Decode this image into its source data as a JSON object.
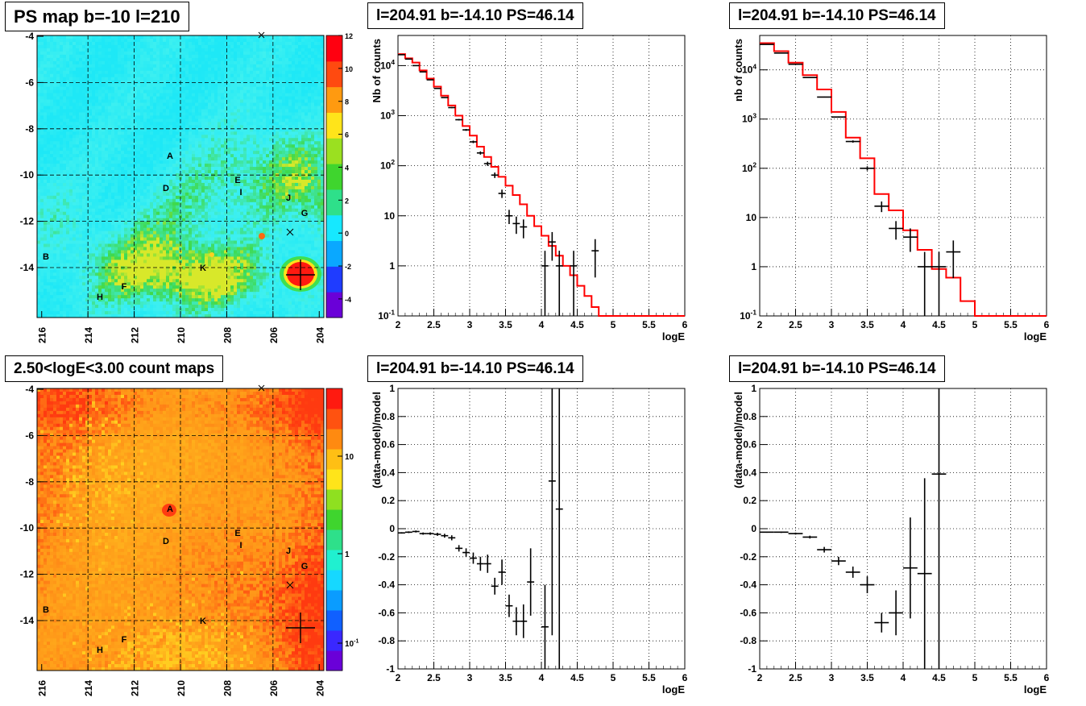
{
  "map_top": {
    "title": "PS map b=-10 l=210",
    "y_ticks": [
      "-4",
      "-6",
      "-8",
      "-10",
      "-12",
      "-14"
    ],
    "x_ticks": [
      "216",
      "214",
      "212",
      "210",
      "208",
      "206",
      "204"
    ],
    "colorbar_ticks": [
      "12",
      "10",
      "8",
      "6",
      "4",
      "2",
      "0",
      "-2",
      "-4"
    ],
    "colorbar_colors": [
      "#6a00d8",
      "#1f3cff",
      "#0aa8ff",
      "#16e8ff",
      "#2ee08a",
      "#3fd52e",
      "#9be020",
      "#ffe41a",
      "#ff9a10",
      "#ff4a10",
      "#ff0010"
    ],
    "base_color": "#22e6f5"
  },
  "map_bottom": {
    "title": "2.50<logE<3.00 count maps",
    "y_ticks": [
      "-4",
      "-6",
      "-8",
      "-10",
      "-12",
      "-14"
    ],
    "x_ticks": [
      "216",
      "214",
      "212",
      "210",
      "208",
      "206",
      "204"
    ],
    "colorbar_ticks": [
      "10",
      "1",
      "10-1"
    ],
    "base_color": "#ff8c1a"
  },
  "sources": [
    {
      "label": "A"
    },
    {
      "label": "B"
    },
    {
      "label": "D"
    },
    {
      "label": "E"
    },
    {
      "label": "F"
    },
    {
      "label": "G"
    },
    {
      "label": "H"
    },
    {
      "label": "I"
    },
    {
      "label": "J"
    },
    {
      "label": "K"
    }
  ],
  "chart_data": [
    {
      "type": "line",
      "title": "l=204.91 b=-14.10 PS=46.14",
      "xlabel": "logE",
      "ylabel": "Nb of counts",
      "x_ticks": [
        "2",
        "2.5",
        "3",
        "3.5",
        "4",
        "4.5",
        "5",
        "5.5",
        "6"
      ],
      "y_ticks": [
        "10-1",
        "1",
        "10",
        "102",
        "103",
        "104"
      ],
      "xlim": [
        2,
        6
      ],
      "ylim": [
        0.1,
        40000
      ],
      "yscale": "log",
      "grid": true,
      "model_color": "#ff0000",
      "bin_edges": [
        2.0,
        2.1,
        2.2,
        2.3,
        2.4,
        2.5,
        2.6,
        2.7,
        2.8,
        2.9,
        3.0,
        3.1,
        3.2,
        3.3,
        3.4,
        3.5,
        3.6,
        3.7,
        3.8,
        3.9,
        4.0,
        4.1,
        4.2,
        4.3,
        4.4,
        4.5,
        4.6,
        4.7,
        4.8,
        4.9,
        5.0,
        5.1,
        5.2,
        5.3,
        5.4,
        5.5,
        5.6,
        5.7,
        5.8,
        5.9,
        6.0
      ],
      "model": [
        17000,
        14000,
        11500,
        8000,
        5500,
        3800,
        2500,
        1600,
        1000,
        620,
        400,
        240,
        150,
        95,
        60,
        40,
        26,
        17,
        10,
        6.2,
        4.0,
        2.5,
        1.6,
        1.0,
        0.65,
        0.4,
        0.25,
        0.15,
        0.1,
        0.1,
        0.1,
        0.1,
        0.1,
        0.1,
        0.1,
        0.1,
        0.1,
        0.1,
        0.1,
        0.1
      ],
      "data": [
        {
          "x": 2.05,
          "y": 16500
        },
        {
          "x": 2.15,
          "y": 13500
        },
        {
          "x": 2.25,
          "y": 10000
        },
        {
          "x": 2.35,
          "y": 7500
        },
        {
          "x": 2.45,
          "y": 5200
        },
        {
          "x": 2.55,
          "y": 3500
        },
        {
          "x": 2.65,
          "y": 2300
        },
        {
          "x": 2.75,
          "y": 1450
        },
        {
          "x": 2.85,
          "y": 830
        },
        {
          "x": 2.95,
          "y": 520
        },
        {
          "x": 3.05,
          "y": 300
        },
        {
          "x": 3.15,
          "y": 180
        },
        {
          "x": 3.25,
          "y": 110
        },
        {
          "x": 3.35,
          "y": 65
        },
        {
          "x": 3.45,
          "y": 28
        },
        {
          "x": 3.55,
          "y": 10
        },
        {
          "x": 3.65,
          "y": 7
        },
        {
          "x": 3.75,
          "y": 6
        },
        {
          "x": 4.05,
          "y": 1
        },
        {
          "x": 4.15,
          "y": 3
        },
        {
          "x": 4.25,
          "y": 1
        },
        {
          "x": 4.45,
          "y": 1
        },
        {
          "x": 4.75,
          "y": 2
        }
      ]
    },
    {
      "type": "line",
      "title": "l=204.91 b=-14.10 PS=46.14",
      "xlabel": "logE",
      "ylabel": "nb of counts",
      "x_ticks": [
        "2",
        "2.5",
        "3",
        "3.5",
        "4",
        "4.5",
        "5",
        "5.5",
        "6"
      ],
      "y_ticks": [
        "10-1",
        "1",
        "10",
        "102",
        "103",
        "104"
      ],
      "xlim": [
        2,
        6
      ],
      "ylim": [
        0.1,
        50000
      ],
      "yscale": "log",
      "grid": true,
      "model_color": "#ff0000",
      "bin_edges": [
        2.0,
        2.2,
        2.4,
        2.6,
        2.8,
        3.0,
        3.2,
        3.4,
        3.6,
        3.8,
        4.0,
        4.2,
        4.4,
        4.6,
        4.8,
        5.0,
        5.2,
        5.4,
        5.6,
        5.8,
        6.0
      ],
      "model": [
        35000,
        24000,
        14000,
        7800,
        4000,
        1400,
        420,
        160,
        30,
        14,
        5.5,
        2.2,
        0.9,
        0.6,
        0.2,
        0.1,
        0.1,
        0.1,
        0.1,
        0.1
      ],
      "data": [
        {
          "x": 2.1,
          "y": 33000
        },
        {
          "x": 2.3,
          "y": 22000
        },
        {
          "x": 2.5,
          "y": 13000
        },
        {
          "x": 2.7,
          "y": 7000
        },
        {
          "x": 2.9,
          "y": 2800
        },
        {
          "x": 3.1,
          "y": 1100
        },
        {
          "x": 3.3,
          "y": 350
        },
        {
          "x": 3.5,
          "y": 100
        },
        {
          "x": 3.7,
          "y": 17
        },
        {
          "x": 3.9,
          "y": 6
        },
        {
          "x": 4.1,
          "y": 4
        },
        {
          "x": 4.3,
          "y": 1
        },
        {
          "x": 4.5,
          "y": 1
        },
        {
          "x": 4.7,
          "y": 2
        }
      ]
    },
    {
      "type": "scatter",
      "title": "l=204.91 b=-14.10 PS=46.14",
      "xlabel": "logE",
      "ylabel": "(data-model)/model",
      "x_ticks": [
        "2",
        "2.5",
        "3",
        "3.5",
        "4",
        "4.5",
        "5",
        "5.5",
        "6"
      ],
      "y_ticks": [
        "-1",
        "-0.8",
        "-0.6",
        "-0.4",
        "-0.2",
        "0",
        "0.2",
        "0.4",
        "0.6",
        "0.8",
        "1"
      ],
      "xlim": [
        2,
        6
      ],
      "ylim": [
        -1,
        1
      ],
      "grid": true,
      "points": [
        {
          "x": 2.05,
          "y": -0.03,
          "err": 0.005
        },
        {
          "x": 2.15,
          "y": -0.025,
          "err": 0.006
        },
        {
          "x": 2.25,
          "y": -0.02,
          "err": 0.007
        },
        {
          "x": 2.35,
          "y": -0.035,
          "err": 0.008
        },
        {
          "x": 2.45,
          "y": -0.035,
          "err": 0.009
        },
        {
          "x": 2.55,
          "y": -0.04,
          "err": 0.011
        },
        {
          "x": 2.65,
          "y": -0.05,
          "err": 0.014
        },
        {
          "x": 2.75,
          "y": -0.065,
          "err": 0.018
        },
        {
          "x": 2.85,
          "y": -0.14,
          "err": 0.023
        },
        {
          "x": 2.95,
          "y": -0.17,
          "err": 0.03
        },
        {
          "x": 3.05,
          "y": -0.21,
          "err": 0.04
        },
        {
          "x": 3.15,
          "y": -0.25,
          "err": 0.05
        },
        {
          "x": 3.25,
          "y": -0.25,
          "err": 0.065
        },
        {
          "x": 3.35,
          "y": -0.41,
          "err": 0.06
        },
        {
          "x": 3.45,
          "y": -0.31,
          "err": 0.09
        },
        {
          "x": 3.55,
          "y": -0.55,
          "err": 0.08
        },
        {
          "x": 3.65,
          "y": -0.66,
          "err": 0.1
        },
        {
          "x": 3.75,
          "y": -0.66,
          "err": 0.12
        },
        {
          "x": 3.85,
          "y": -0.38,
          "err": 0.24
        },
        {
          "x": 4.05,
          "y": -0.7,
          "err": 0.3
        },
        {
          "x": 4.15,
          "y": 0.34,
          "err": 1.1
        },
        {
          "x": 4.25,
          "y": 0.14,
          "err": 1.2
        }
      ]
    },
    {
      "type": "scatter",
      "title": "l=204.91 b=-14.10 PS=46.14",
      "xlabel": "logE",
      "ylabel": "(data-model)/model",
      "x_ticks": [
        "2",
        "2.5",
        "3",
        "3.5",
        "4",
        "4.5",
        "5",
        "5.5",
        "6"
      ],
      "y_ticks": [
        "-1",
        "-0.8",
        "-0.6",
        "-0.4",
        "-0.2",
        "0",
        "0.2",
        "0.4",
        "0.6",
        "0.8",
        "1"
      ],
      "xlim": [
        2,
        6
      ],
      "ylim": [
        -1,
        1
      ],
      "grid": true,
      "points": [
        {
          "x": 2.1,
          "y": -0.025,
          "err": 0.004
        },
        {
          "x": 2.3,
          "y": -0.025,
          "err": 0.005
        },
        {
          "x": 2.5,
          "y": -0.035,
          "err": 0.007
        },
        {
          "x": 2.7,
          "y": -0.06,
          "err": 0.01
        },
        {
          "x": 2.9,
          "y": -0.15,
          "err": 0.02
        },
        {
          "x": 3.1,
          "y": -0.23,
          "err": 0.03
        },
        {
          "x": 3.3,
          "y": -0.31,
          "err": 0.04
        },
        {
          "x": 3.5,
          "y": -0.4,
          "err": 0.06
        },
        {
          "x": 3.7,
          "y": -0.67,
          "err": 0.07
        },
        {
          "x": 3.9,
          "y": -0.6,
          "err": 0.16
        },
        {
          "x": 4.1,
          "y": -0.28,
          "err": 0.36
        },
        {
          "x": 4.3,
          "y": -0.32,
          "err": 0.68
        },
        {
          "x": 4.5,
          "y": 0.39,
          "err": 1.4
        }
      ]
    }
  ]
}
